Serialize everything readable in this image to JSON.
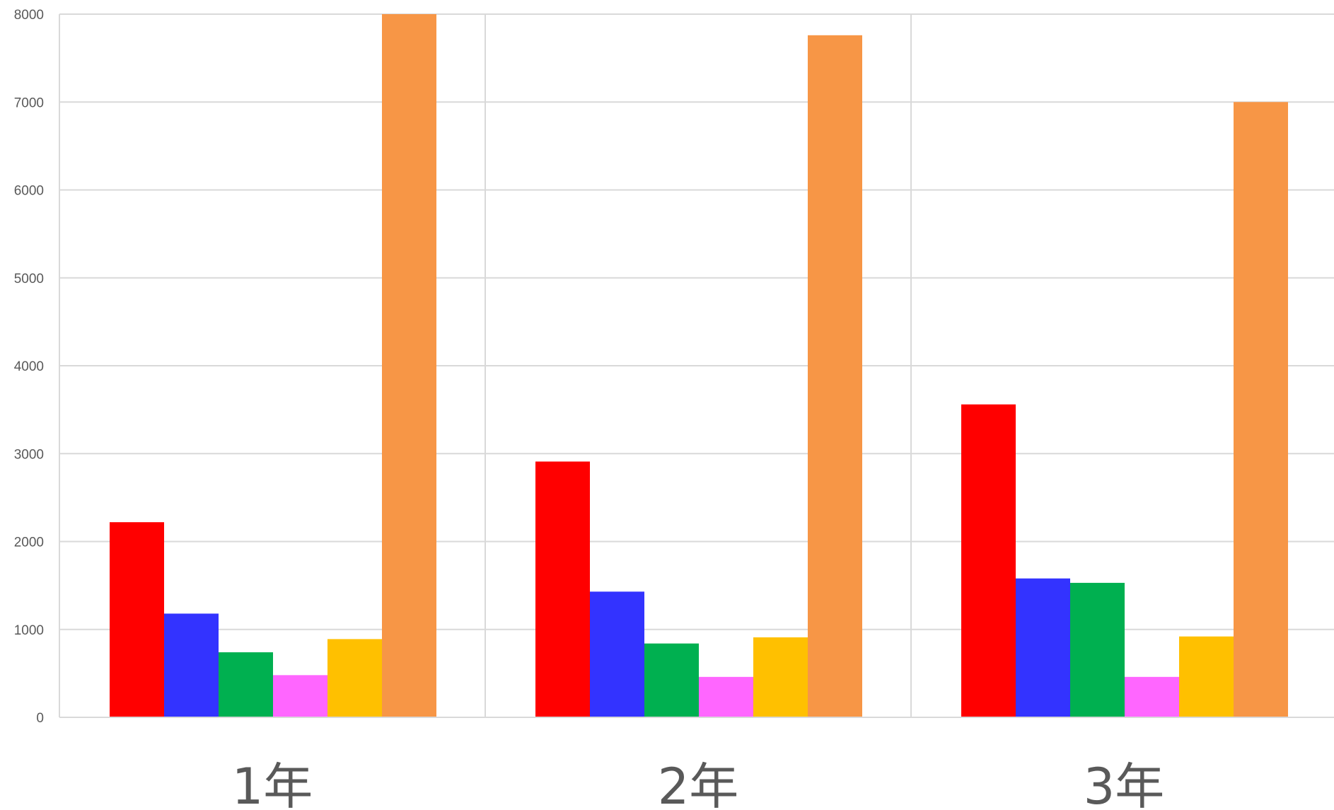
{
  "chart_data": {
    "type": "bar",
    "categories": [
      "1年",
      "2年",
      "3年"
    ],
    "series": [
      {
        "color": "#FF0000",
        "values": [
          2220,
          2910,
          3560
        ]
      },
      {
        "color": "#3333FF",
        "values": [
          1180,
          1430,
          1580
        ]
      },
      {
        "color": "#00B050",
        "values": [
          740,
          840,
          1530
        ]
      },
      {
        "color": "#FF66FF",
        "values": [
          480,
          460,
          460
        ]
      },
      {
        "color": "#FFC000",
        "values": [
          890,
          910,
          920
        ]
      },
      {
        "color": "#F79646",
        "values": [
          8000,
          7760,
          7000
        ]
      }
    ],
    "yticks": [
      "0",
      "1000",
      "2000",
      "3000",
      "4000",
      "5000",
      "6000",
      "7000",
      "8000"
    ],
    "ylim": [
      0,
      8000
    ],
    "grid": true,
    "legend": "none",
    "title": "",
    "xlabel": "",
    "ylabel": ""
  }
}
